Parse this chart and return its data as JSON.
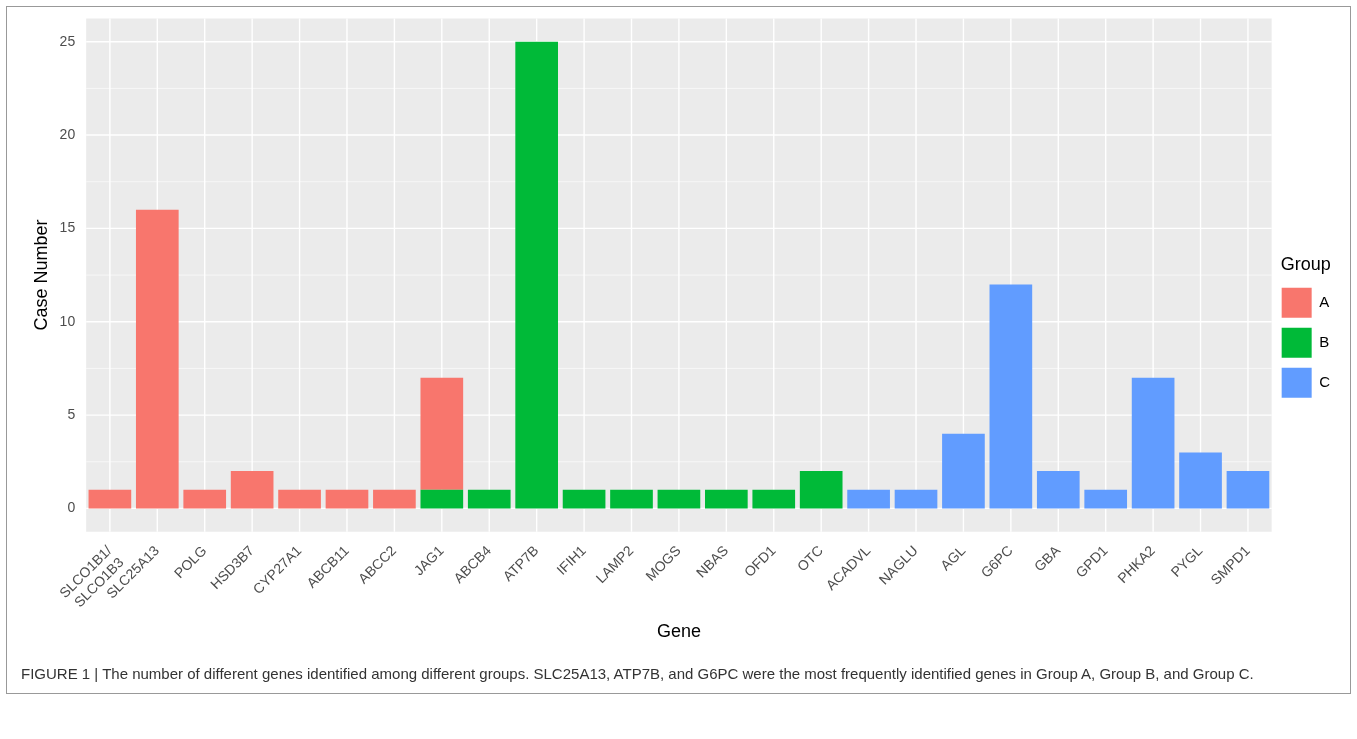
{
  "chart_data": {
    "type": "bar",
    "stacked": true,
    "xlabel": "Gene",
    "ylabel": "Case Number",
    "legend_title": "Group",
    "legend": "right",
    "grid": true,
    "categories": [
      "SLCO1B1/SLCO1B3",
      "SLC25A13",
      "POLG",
      "HSD3B7",
      "CYP27A1",
      "ABCB11",
      "ABCC2",
      "JAG1",
      "ABCB4",
      "ATP7B",
      "IFIH1",
      "LAMP2",
      "MOGS",
      "NBAS",
      "OFD1",
      "OTC",
      "ACADVL",
      "NAGLU",
      "AGL",
      "G6PC",
      "GBA",
      "GPD1",
      "PHKA2",
      "PYGL",
      "SMPD1"
    ],
    "series": [
      {
        "name": "B",
        "color": "#00ba38",
        "values": [
          null,
          null,
          null,
          null,
          null,
          null,
          null,
          1,
          1,
          25,
          1,
          1,
          1,
          1,
          1,
          2,
          null,
          null,
          null,
          null,
          null,
          null,
          null,
          null,
          null
        ]
      },
      {
        "name": "A",
        "color": "#f8766d",
        "values": [
          1,
          16,
          1,
          2,
          1,
          1,
          1,
          6,
          null,
          null,
          null,
          null,
          null,
          null,
          null,
          null,
          null,
          null,
          null,
          null,
          null,
          null,
          null,
          null,
          null
        ]
      },
      {
        "name": "C",
        "color": "#619cff",
        "values": [
          null,
          null,
          null,
          null,
          null,
          null,
          null,
          null,
          null,
          null,
          null,
          null,
          null,
          null,
          null,
          null,
          1,
          1,
          4,
          12,
          2,
          1,
          7,
          3,
          2
        ]
      }
    ],
    "ylim": [
      -1.25,
      26.25
    ],
    "yticks": [
      0,
      5,
      10,
      15,
      20,
      25
    ],
    "annotations": [
      "FIGURE 1 | The number of different genes identified among different groups. SLC25A13, ATP7B, and G6PC were the most frequently identified genes in Group A, Group B, and Group C."
    ]
  }
}
